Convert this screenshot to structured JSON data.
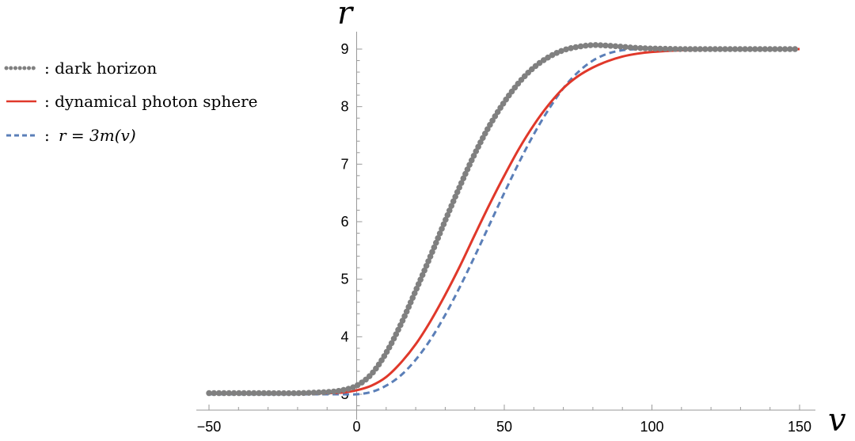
{
  "chart_data": {
    "type": "line",
    "xlabel": "v",
    "ylabel": "r",
    "xlim": [
      -50,
      150
    ],
    "ylim": [
      2.83,
      9.3
    ],
    "x_ticks": [
      -50,
      0,
      50,
      100,
      150
    ],
    "x_tick_labels": [
      "−50",
      "0",
      "50",
      "100",
      "150"
    ],
    "y_ticks": [
      3,
      4,
      5,
      6,
      7,
      8,
      9
    ],
    "y_tick_labels": [
      "3",
      "4",
      "5",
      "6",
      "7",
      "8",
      "9"
    ],
    "legend_position": "top-left",
    "series": [
      {
        "name": "dark horizon",
        "legend_label": ": dark horizon",
        "style": "dotted",
        "color": "#808080",
        "x": [
          -50,
          -40,
          -30,
          -20,
          -10,
          -5,
          0,
          5,
          10,
          15,
          20,
          25,
          30,
          35,
          40,
          45,
          50,
          55,
          60,
          65,
          70,
          75,
          80,
          85,
          90,
          95,
          100,
          110,
          120,
          130,
          140,
          150
        ],
        "y": [
          3.02,
          3.02,
          3.02,
          3.02,
          3.04,
          3.07,
          3.15,
          3.35,
          3.72,
          4.22,
          4.8,
          5.4,
          6.02,
          6.62,
          7.18,
          7.67,
          8.08,
          8.42,
          8.68,
          8.86,
          8.98,
          9.04,
          9.07,
          9.06,
          9.04,
          9.02,
          9.01,
          9.0,
          9.0,
          9.0,
          9.0,
          9.0
        ]
      },
      {
        "name": "dynamical photon sphere",
        "legend_label": ": dynamical photon sphere",
        "style": "solid",
        "color": "#e0382a",
        "x": [
          -50,
          -40,
          -30,
          -20,
          -10,
          -5,
          0,
          5,
          10,
          15,
          20,
          25,
          30,
          35,
          40,
          45,
          50,
          55,
          60,
          65,
          70,
          75,
          80,
          85,
          90,
          95,
          100,
          110,
          120,
          130,
          140,
          150
        ],
        "y": [
          3.01,
          3.01,
          3.01,
          3.01,
          3.02,
          3.03,
          3.07,
          3.15,
          3.3,
          3.55,
          3.87,
          4.27,
          4.73,
          5.23,
          5.77,
          6.3,
          6.8,
          7.27,
          7.68,
          8.03,
          8.32,
          8.53,
          8.68,
          8.79,
          8.87,
          8.92,
          8.95,
          8.98,
          8.99,
          9.0,
          9.0,
          9.0
        ]
      },
      {
        "name": "r = 3m(v)",
        "legend_label_prefix": ":",
        "legend_label_math": "r = 3m(v)",
        "style": "dashed",
        "color": "#5b7fb8",
        "x": [
          -50,
          -40,
          -30,
          -20,
          -10,
          -5,
          0,
          5,
          10,
          15,
          20,
          25,
          30,
          35,
          40,
          45,
          50,
          55,
          60,
          65,
          70,
          75,
          80,
          85,
          90,
          95,
          100,
          105,
          110,
          120,
          130,
          140,
          150
        ],
        "y": [
          3.0,
          3.0,
          3.0,
          3.0,
          3.0,
          3.0,
          3.0,
          3.04,
          3.15,
          3.33,
          3.6,
          3.95,
          4.38,
          4.87,
          5.4,
          5.95,
          6.5,
          7.03,
          7.52,
          7.95,
          8.32,
          8.6,
          8.8,
          8.92,
          8.98,
          9.0,
          9.0,
          9.0,
          9.0,
          9.0,
          9.0,
          9.0,
          9.0
        ]
      }
    ]
  }
}
